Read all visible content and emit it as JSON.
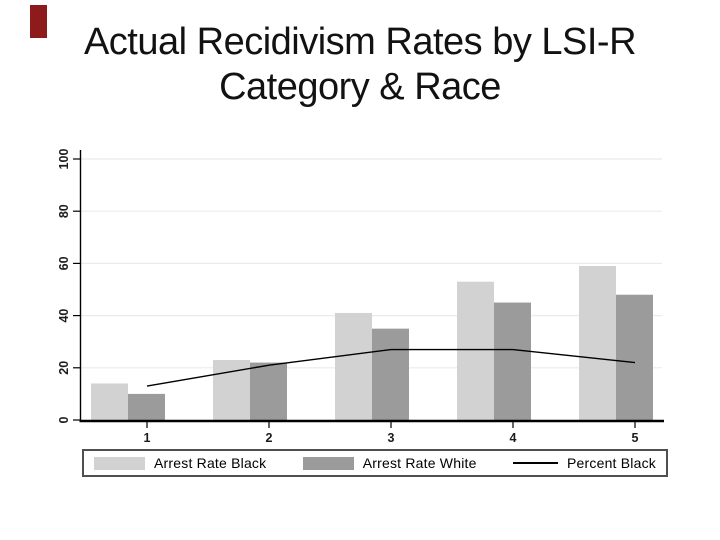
{
  "slide": {
    "title_line1": "Actual Recidivism Rates by LSI-R",
    "title_line2": "Category & Race",
    "accent_bar_color": "#8e1b1b",
    "background_color": "#ffffff"
  },
  "chart_data": {
    "type": "bar",
    "subtype": "grouped bars with overlaid line",
    "categories": [
      "1",
      "2",
      "3",
      "4",
      "5"
    ],
    "series": [
      {
        "name": "Arrest Rate Black",
        "type": "bar",
        "color": "#d2d2d2",
        "values": [
          14,
          23,
          41,
          53,
          59
        ]
      },
      {
        "name": "Arrest Rate White",
        "type": "bar",
        "color": "#9b9b9b",
        "values": [
          10,
          22,
          35,
          45,
          48
        ]
      },
      {
        "name": "Percent Black",
        "type": "line",
        "color": "#000000",
        "values": [
          13,
          21,
          27,
          27,
          22
        ]
      }
    ],
    "title": "",
    "xlabel": "",
    "ylabel": "",
    "ylim": [
      0,
      100
    ],
    "yticks": [
      0,
      20,
      40,
      60,
      80,
      100
    ],
    "ytick_labels_rotated": true,
    "grid": "horizontal",
    "gridline_color": "#ebebeb",
    "axis_color": "#000000",
    "legend_position": "bottom",
    "legend_border_color": "#4f4f4f"
  }
}
